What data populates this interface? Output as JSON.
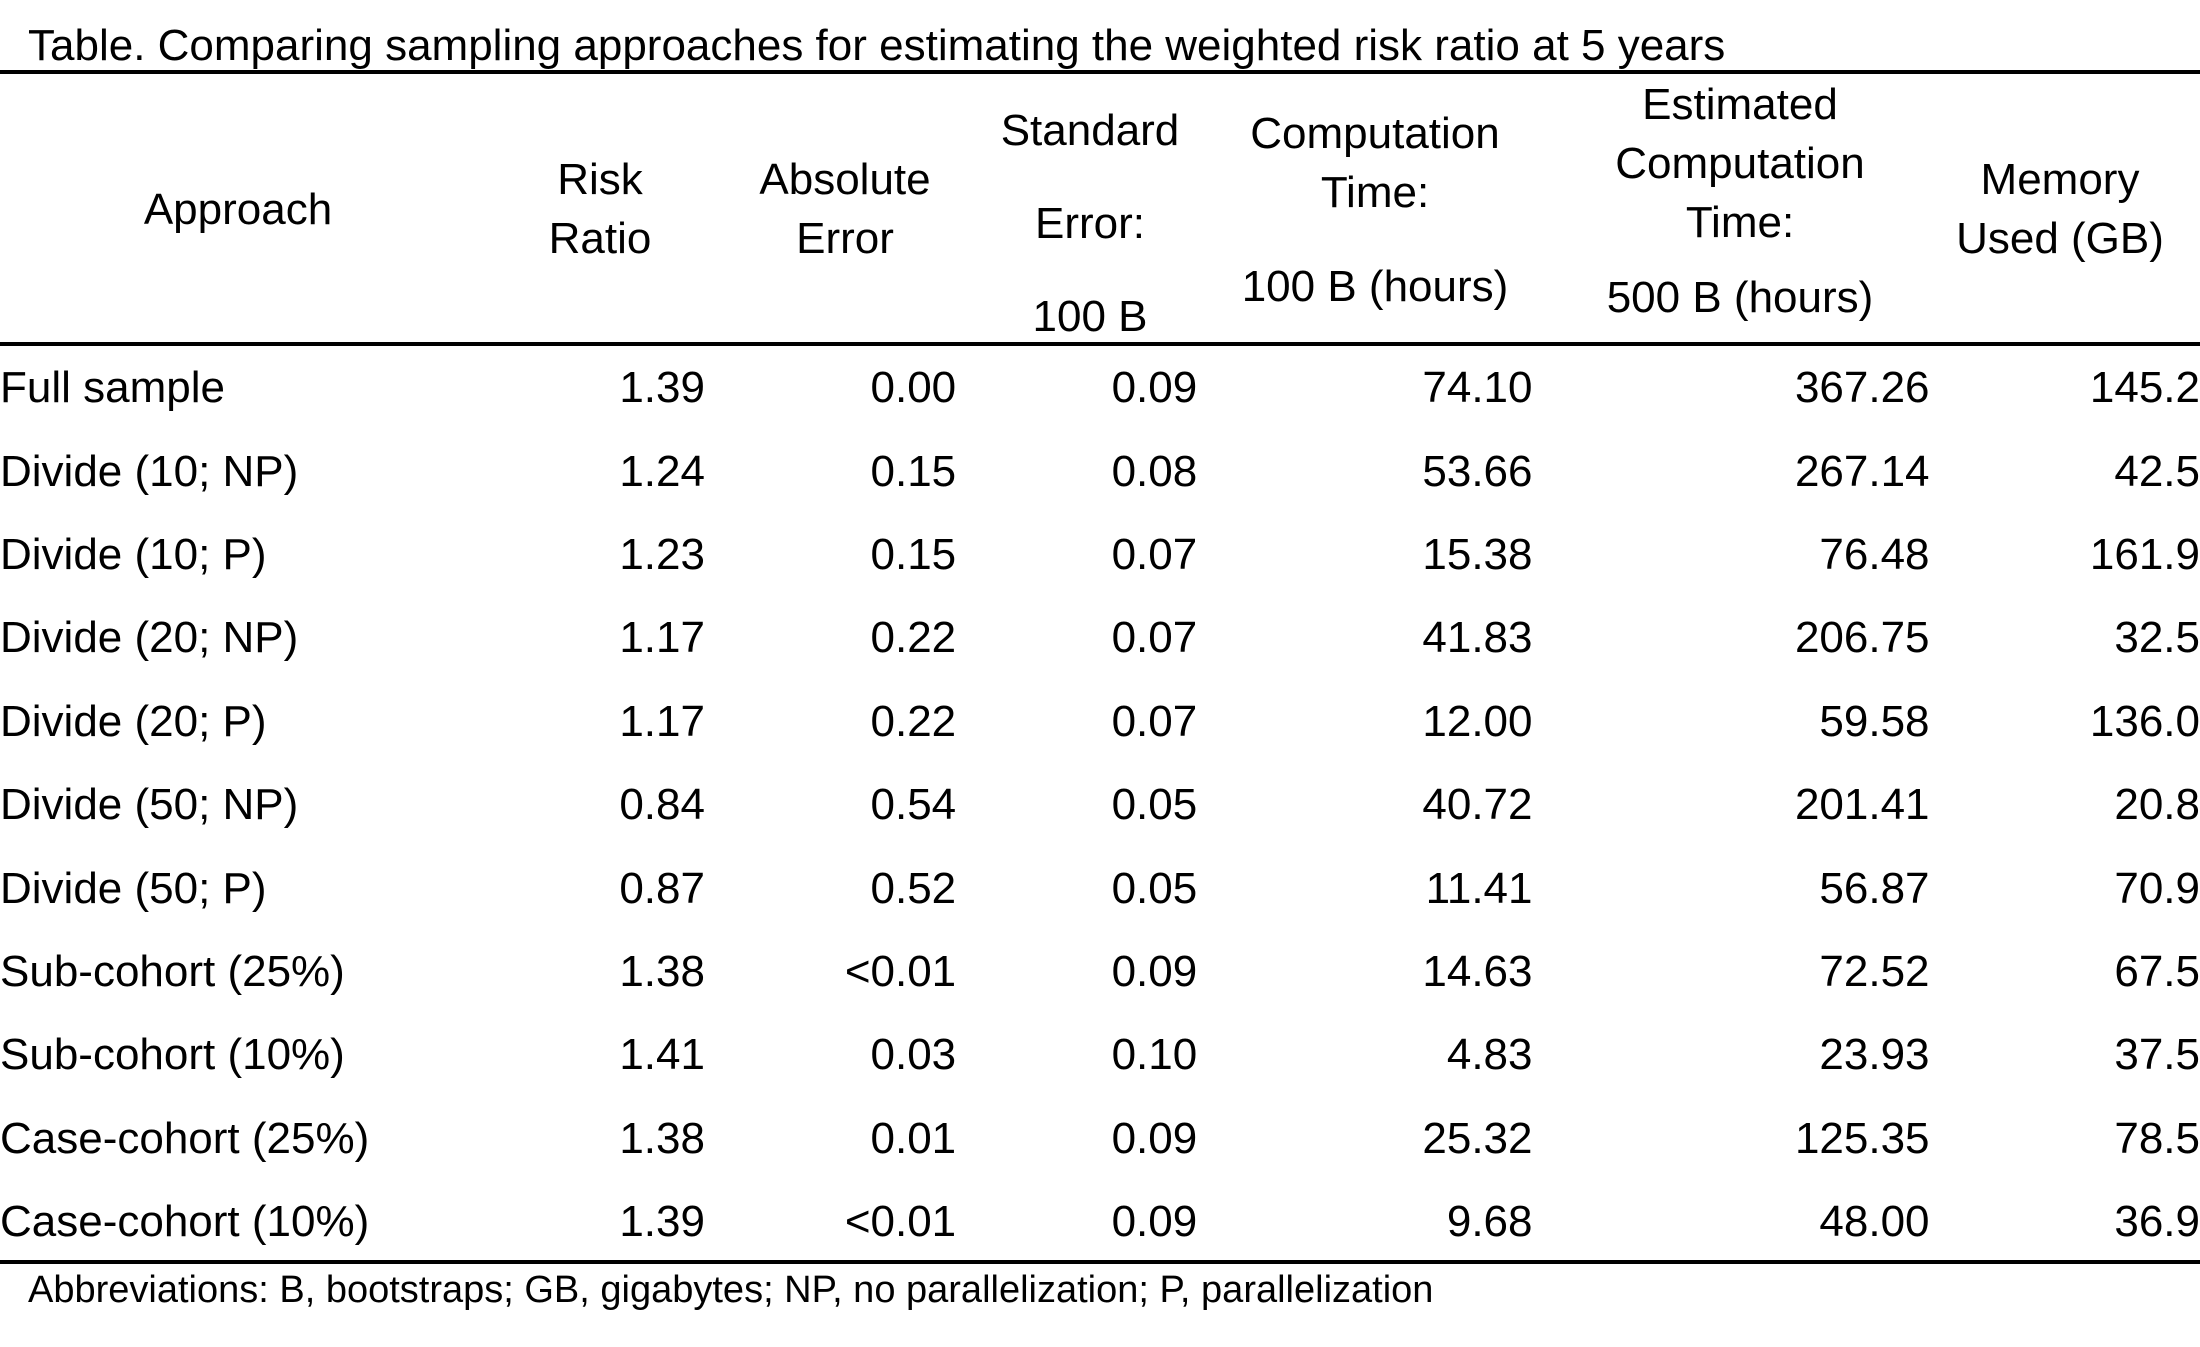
{
  "caption": "Table. Comparing sampling approaches for estimating the weighted risk ratio at 5 years",
  "headers": {
    "approach": "Approach",
    "risk_ratio": [
      "Risk",
      "Ratio"
    ],
    "absolute_error": [
      "Absolute",
      "Error"
    ],
    "standard_error": [
      "Standard",
      "Error:",
      "100 B"
    ],
    "computation_time": [
      "Computation",
      "Time:",
      "100 B (hours)"
    ],
    "estimated_computation_time": [
      "Estimated",
      "Computation",
      "Time:",
      "500 B (hours)"
    ],
    "memory_used": [
      "Memory",
      "Used (GB)"
    ]
  },
  "rows": [
    {
      "approach": "Full sample",
      "risk_ratio": "1.39",
      "absolute_error": "0.00",
      "standard_error": "0.09",
      "computation_time": "74.10",
      "estimated_computation_time": "367.26",
      "memory_used": "145.2"
    },
    {
      "approach": "Divide (10; NP)",
      "risk_ratio": "1.24",
      "absolute_error": "0.15",
      "standard_error": "0.08",
      "computation_time": "53.66",
      "estimated_computation_time": "267.14",
      "memory_used": "42.5"
    },
    {
      "approach": "Divide (10; P)",
      "risk_ratio": "1.23",
      "absolute_error": "0.15",
      "standard_error": "0.07",
      "computation_time": "15.38",
      "estimated_computation_time": "76.48",
      "memory_used": "161.9"
    },
    {
      "approach": "Divide (20; NP)",
      "risk_ratio": "1.17",
      "absolute_error": "0.22",
      "standard_error": "0.07",
      "computation_time": "41.83",
      "estimated_computation_time": "206.75",
      "memory_used": "32.5"
    },
    {
      "approach": "Divide (20; P)",
      "risk_ratio": "1.17",
      "absolute_error": "0.22",
      "standard_error": "0.07",
      "computation_time": "12.00",
      "estimated_computation_time": "59.58",
      "memory_used": "136.0"
    },
    {
      "approach": "Divide (50; NP)",
      "risk_ratio": "0.84",
      "absolute_error": "0.54",
      "standard_error": "0.05",
      "computation_time": "40.72",
      "estimated_computation_time": "201.41",
      "memory_used": "20.8"
    },
    {
      "approach": "Divide (50; P)",
      "risk_ratio": "0.87",
      "absolute_error": "0.52",
      "standard_error": "0.05",
      "computation_time": "11.41",
      "estimated_computation_time": "56.87",
      "memory_used": "70.9"
    },
    {
      "approach": "Sub-cohort (25%)",
      "risk_ratio": "1.38",
      "absolute_error": "<0.01",
      "standard_error": "0.09",
      "computation_time": "14.63",
      "estimated_computation_time": "72.52",
      "memory_used": "67.5"
    },
    {
      "approach": "Sub-cohort (10%)",
      "risk_ratio": "1.41",
      "absolute_error": "0.03",
      "standard_error": "0.10",
      "computation_time": "4.83",
      "estimated_computation_time": "23.93",
      "memory_used": "37.5"
    },
    {
      "approach": "Case-cohort (25%)",
      "risk_ratio": "1.38",
      "absolute_error": "0.01",
      "standard_error": "0.09",
      "computation_time": "25.32",
      "estimated_computation_time": "125.35",
      "memory_used": "78.5"
    },
    {
      "approach": "Case-cohort (10%)",
      "risk_ratio": "1.39",
      "absolute_error": "<0.01",
      "standard_error": "0.09",
      "computation_time": "9.68",
      "estimated_computation_time": "48.00",
      "memory_used": "36.9"
    }
  ],
  "footnote": "Abbreviations: B, bootstraps; GB, gigabytes; NP, no parallelization; P, parallelization"
}
